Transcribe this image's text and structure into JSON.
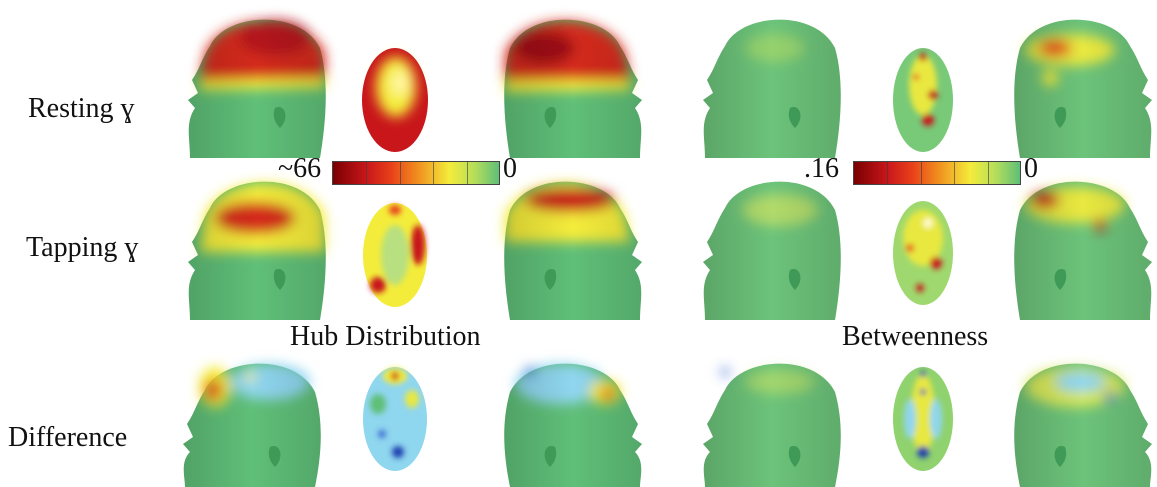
{
  "rows": [
    {
      "label": "Resting ɣ"
    },
    {
      "label": "Tapping ɣ"
    },
    {
      "label": "Difference"
    }
  ],
  "panels": [
    {
      "title": "Hub Distribution",
      "colorbar": {
        "max_label": "~66",
        "min_label": "0"
      }
    },
    {
      "title": "Betweenness",
      "colorbar": {
        "max_label": ".16",
        "min_label": "0"
      }
    }
  ],
  "colors": {
    "skin": "#5fbf78",
    "red": "#c8161b",
    "yellow": "#f4ec3a",
    "blue": "#3aa8e0",
    "cyan": "#8fd6ef"
  }
}
